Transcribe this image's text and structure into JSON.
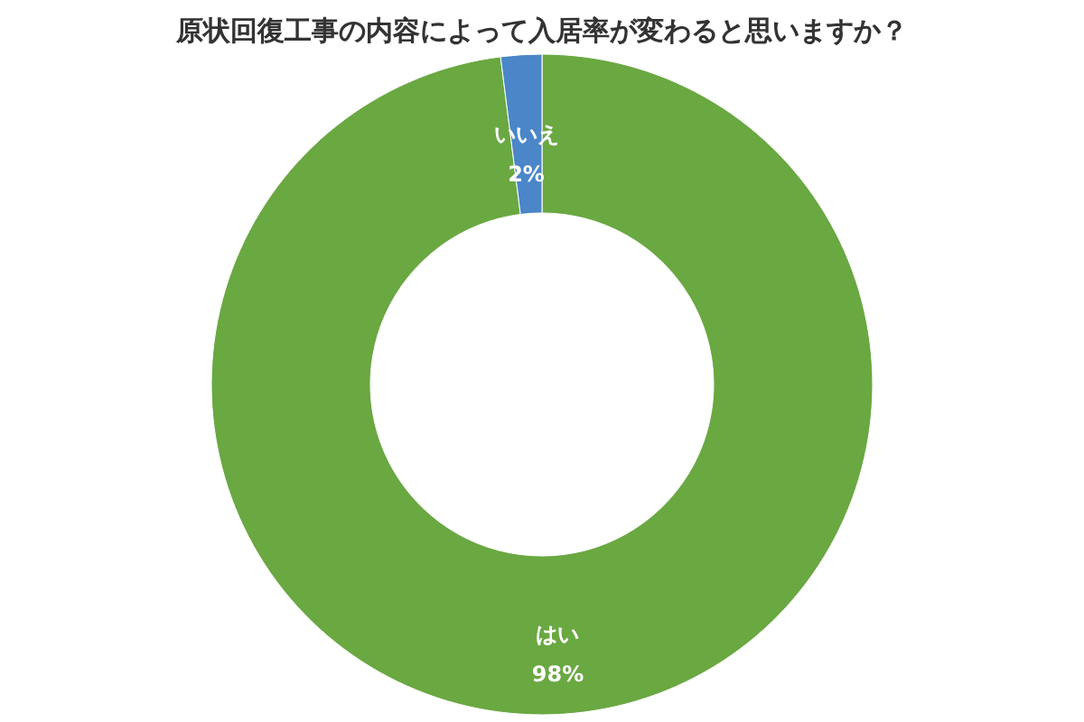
{
  "chart_data": {
    "type": "donut",
    "title": "原状回復工事の内容によって入居率が変わると思いますか？",
    "categories": [
      "はい",
      "いいえ"
    ],
    "values": [
      98,
      2
    ],
    "value_labels": [
      "98%",
      "2%"
    ],
    "colors": [
      "#6aa842",
      "#4a86c8"
    ],
    "legend": false
  }
}
